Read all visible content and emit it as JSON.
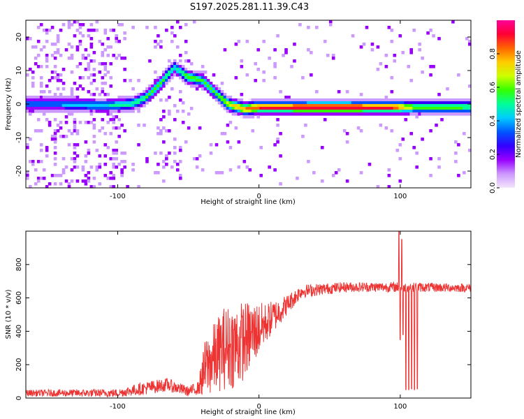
{
  "title": "S197.2025.281.11.39.C43",
  "chart_data": [
    {
      "type": "heatmap",
      "xlabel": "Height of straight line (km)",
      "ylabel": "Frequency (Hz)",
      "xlim": [
        -165,
        150
      ],
      "ylim": [
        -25,
        25
      ],
      "xticks": [
        -100,
        0,
        100
      ],
      "yticks": [
        -20,
        -10,
        0,
        10,
        20
      ],
      "colorbar": {
        "label": "Normalized spectral amplitude",
        "range": [
          0,
          1
        ],
        "ticks": [
          "0.0",
          "0.2",
          "0.4",
          "0.6",
          "0.8"
        ],
        "colors": [
          "#f4e6fb",
          "#cc99ff",
          "#9900ff",
          "#3300ff",
          "#0055ff",
          "#00ccff",
          "#00ff99",
          "#33ff00",
          "#ccff00",
          "#ffcc00",
          "#ff6600",
          "#ff0033",
          "#ff0099"
        ]
      },
      "ridge": [
        {
          "x": -165,
          "f": 0,
          "a": 0.35
        },
        {
          "x": -140,
          "f": 0,
          "a": 0.4
        },
        {
          "x": -110,
          "f": -0.5,
          "a": 0.45
        },
        {
          "x": -90,
          "f": 0,
          "a": 0.5
        },
        {
          "x": -80,
          "f": 2,
          "a": 0.55
        },
        {
          "x": -70,
          "f": 6,
          "a": 0.6
        },
        {
          "x": -60,
          "f": 11,
          "a": 0.45
        },
        {
          "x": -50,
          "f": 8,
          "a": 0.6
        },
        {
          "x": -40,
          "f": 7,
          "a": 0.55
        },
        {
          "x": -30,
          "f": 3,
          "a": 0.55
        },
        {
          "x": -22,
          "f": 0,
          "a": 0.7
        },
        {
          "x": -10,
          "f": -1.5,
          "a": 0.8
        },
        {
          "x": 0,
          "f": -1,
          "a": 0.9
        },
        {
          "x": 50,
          "f": -1,
          "a": 0.95
        },
        {
          "x": 95,
          "f": -1,
          "a": 0.9
        },
        {
          "x": 110,
          "f": -1,
          "a": 0.6
        },
        {
          "x": 150,
          "f": -1,
          "a": 0.55
        }
      ]
    },
    {
      "type": "line",
      "xlabel": "Height of straight line (km)",
      "ylabel": "SNR (10 * v/v)",
      "xlim": [
        -165,
        150
      ],
      "ylim": [
        0,
        1000
      ],
      "xticks": [
        -100,
        0,
        100
      ],
      "yticks": [
        0,
        200,
        400,
        600,
        800
      ],
      "line_color": "#ee3333",
      "envelope": [
        {
          "x": -165,
          "base": 30,
          "noise": 20
        },
        {
          "x": -100,
          "base": 30,
          "noise": 25
        },
        {
          "x": -80,
          "base": 60,
          "noise": 40
        },
        {
          "x": -65,
          "base": 80,
          "noise": 40
        },
        {
          "x": -50,
          "base": 40,
          "noise": 30
        },
        {
          "x": -43,
          "base": 60,
          "noise": 40
        },
        {
          "x": -38,
          "base": 180,
          "noise": 180
        },
        {
          "x": -25,
          "base": 300,
          "noise": 250
        },
        {
          "x": -15,
          "base": 320,
          "noise": 260
        },
        {
          "x": -5,
          "base": 380,
          "noise": 200
        },
        {
          "x": 5,
          "base": 450,
          "noise": 120
        },
        {
          "x": 20,
          "base": 560,
          "noise": 60
        },
        {
          "x": 30,
          "base": 640,
          "noise": 40
        },
        {
          "x": 60,
          "base": 665,
          "noise": 30
        },
        {
          "x": 98,
          "base": 665,
          "noise": 30
        },
        {
          "x": 150,
          "base": 660,
          "noise": 25
        }
      ],
      "spikes": [
        {
          "x": 99,
          "y": 1000
        },
        {
          "x": 100,
          "y": 350
        },
        {
          "x": 101,
          "y": 950
        },
        {
          "x": 102,
          "y": 380
        },
        {
          "x": 104,
          "y": 50
        },
        {
          "x": 106,
          "y": 50
        },
        {
          "x": 108,
          "y": 55
        },
        {
          "x": 110,
          "y": 50
        },
        {
          "x": 112,
          "y": 55
        }
      ]
    }
  ]
}
